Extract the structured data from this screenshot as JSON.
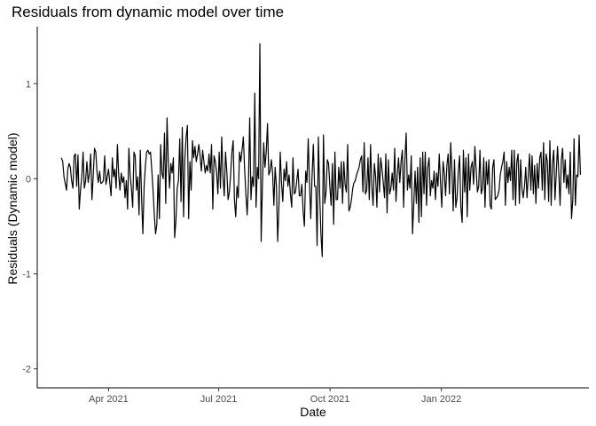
{
  "chart_data": {
    "type": "line",
    "title": "Residuals from dynamic model over time",
    "xlabel": "Date",
    "ylabel": "Residuals (Dynamic model)",
    "x_tick_labels": [
      "Apr 2021",
      "Jul 2021",
      "Oct 2021",
      "Jan 2022"
    ],
    "y_tick_labels": [
      "-2",
      "-1",
      "0",
      "1"
    ],
    "y_ticks": [
      -2,
      -1,
      0,
      1
    ],
    "ylim": [
      -2.2,
      1.6
    ],
    "xlim": [
      "2021-02-01",
      "2022-05-03"
    ],
    "grid": false,
    "line_color": "#000000",
    "series": [
      {
        "start_date": "2021-02-21",
        "end_date": "2022-04-26",
        "values": [
          0.22,
          0.18,
          0.02,
          -0.05,
          -0.12,
          0.1,
          0.16,
          0.12,
          -0.02,
          -0.1,
          0.24,
          0.26,
          -0.08,
          0.25,
          -0.32,
          -0.12,
          0.02,
          0.28,
          -0.1,
          -0.02,
          0.18,
          -0.04,
          0.06,
          0.26,
          -0.22,
          0.04,
          0.32,
          0.28,
          0.06,
          -0.04,
          0.08,
          -0.05,
          -0.04,
          -0.02,
          0.24,
          -0.06,
          0.02,
          0.1,
          -0.04,
          -0.18,
          0.22,
          0.02,
          0.1,
          -0.1,
          0.36,
          0.04,
          -0.12,
          0.06,
          -0.04,
          0.02,
          -0.2,
          -0.02,
          -0.32,
          0.32,
          0.04,
          -0.1,
          -0.3,
          0.28,
          0.24,
          -0.12,
          0.02,
          -0.38,
          0.3,
          -0.2,
          -0.58,
          -0.08,
          0.14,
          0.28,
          0.3,
          0.26,
          0.28,
          0.1,
          -0.12,
          -0.38,
          -0.58,
          -0.48,
          0.04,
          -0.42,
          0.36,
          0.06,
          0.0,
          0.48,
          -0.26,
          0.64,
          0.18,
          -0.1,
          0.16,
          0.06,
          0.22,
          -0.62,
          -0.44,
          -0.1,
          -0.02,
          0.42,
          -0.24,
          0.54,
          -0.4,
          0.2,
          0.44,
          0.56,
          -0.42,
          0.18,
          -0.12,
          0.4,
          0.22,
          0.34,
          0.18,
          0.26,
          0.36,
          0.24,
          0.08,
          0.3,
          0.18,
          0.06,
          0.14,
          0.08,
          0.26,
          0.06,
          0.36,
          -0.32,
          0.24,
          0.18,
          0.06,
          -0.16,
          0.28,
          -0.1,
          0.44,
          0.02,
          -0.18,
          0.28,
          0.08,
          -0.22,
          -0.14,
          0.04,
          0.28,
          0.4,
          -0.22,
          -0.4,
          -0.08,
          -0.2,
          0.28,
          0.18,
          0.3,
          0.44,
          0.1,
          -0.16,
          -0.38,
          -0.06,
          0.64,
          -0.22,
          0.02,
          -0.08,
          0.9,
          -0.3,
          0.12,
          0.0,
          1.42,
          -0.66,
          -0.06,
          0.38,
          0.12,
          0.28,
          0.58,
          0.04,
          0.08,
          0.2,
          0.06,
          -0.28,
          0.12,
          -0.08,
          -0.66,
          -0.28,
          0.28,
          -0.04,
          -0.24,
          0.1,
          -0.02,
          0.18,
          -0.08,
          0.04,
          -0.16,
          -0.3,
          0.22,
          -0.16,
          -0.14,
          -0.02,
          0.1,
          -0.18,
          -0.18,
          -0.06,
          -0.34,
          -0.5,
          0.08,
          -0.04,
          0.42,
          -0.04,
          -0.42,
          0.02,
          0.36,
          -0.08,
          -0.08,
          -0.7,
          0.44,
          -0.16,
          -0.58,
          -0.82,
          0.46,
          -0.26,
          -0.14,
          0.2,
          0.16,
          -0.08,
          -0.28,
          0.16,
          -0.48,
          0.28,
          -0.22,
          -0.22,
          0.12,
          -0.1,
          0.18,
          -0.26,
          0.18,
          -0.06,
          -0.14,
          0.36,
          -0.34,
          -0.3,
          -0.22,
          -0.1,
          -0.04,
          -0.02,
          0.04,
          0.08,
          0.12,
          0.2,
          0.24,
          -0.14,
          0.38,
          -0.16,
          -0.12,
          0.22,
          -0.22,
          0.36,
          -0.08,
          -0.28,
          0.16,
          0.02,
          -0.3,
          0.26,
          -0.14,
          0.22,
          0.1,
          -0.04,
          -0.2,
          0.26,
          -0.36,
          0.2,
          -0.16,
          -0.1,
          0.06,
          -0.12,
          0.32,
          -0.24,
          0.04,
          0.22,
          -0.04,
          0.18,
          0.3,
          -0.3,
          0.2,
          0.48,
          -0.12,
          0.04,
          -0.1,
          0.24,
          -0.58,
          -0.26,
          0.08,
          -0.26,
          0.12,
          -0.46,
          0.22,
          -0.4,
          0.28,
          -0.16,
          0.28,
          -0.28,
          0.12,
          0.22,
          -0.18,
          -0.02,
          -0.1,
          0.08,
          -0.22,
          0.06,
          -0.08,
          0.26,
          -0.04,
          -0.3,
          0.18,
          0.06,
          -0.18,
          0.14,
          0.26,
          -0.16,
          0.38,
          0.08,
          -0.34,
          0.2,
          -0.3,
          -0.2,
          0.08,
          0.24,
          -0.3,
          -0.46,
          0.3,
          -0.14,
          0.22,
          -0.4,
          0.26,
          -0.12,
          0.12,
          0.18,
          -0.06,
          0.34,
          0.1,
          -0.14,
          -0.08,
          0.3,
          -0.16,
          -0.1,
          0.22,
          -0.3,
          0.18,
          -0.06,
          0.2,
          -0.28,
          -0.32,
          0.12,
          0.2,
          -0.22,
          -0.2,
          -0.18,
          -0.12,
          0.04,
          0.12,
          0.18,
          0.28,
          -0.28,
          0.18,
          -0.04,
          0.12,
          -0.02,
          0.3,
          -0.22,
          0.3,
          -0.28,
          0.18,
          0.26,
          -0.26,
          0.2,
          -0.1,
          -0.2,
          -0.08,
          0.12,
          -0.2,
          0.04,
          0.26,
          -0.12,
          0.24,
          -0.16,
          0.14,
          -0.26,
          0.16,
          -0.1,
          0.22,
          0.28,
          -0.12,
          0.38,
          -0.22,
          0.26,
          0.18,
          -0.24,
          0.4,
          -0.28,
          0.16,
          0.3,
          -0.22,
          0.06,
          0.34,
          0.06,
          -0.28,
          0.2,
          0.32,
          -0.04,
          0.2,
          -0.1,
          0.04,
          -0.16,
          0.28,
          -0.42,
          -0.22,
          0.42,
          -0.28,
          0.04,
          0.02,
          0.46,
          0.04
        ]
      }
    ]
  }
}
